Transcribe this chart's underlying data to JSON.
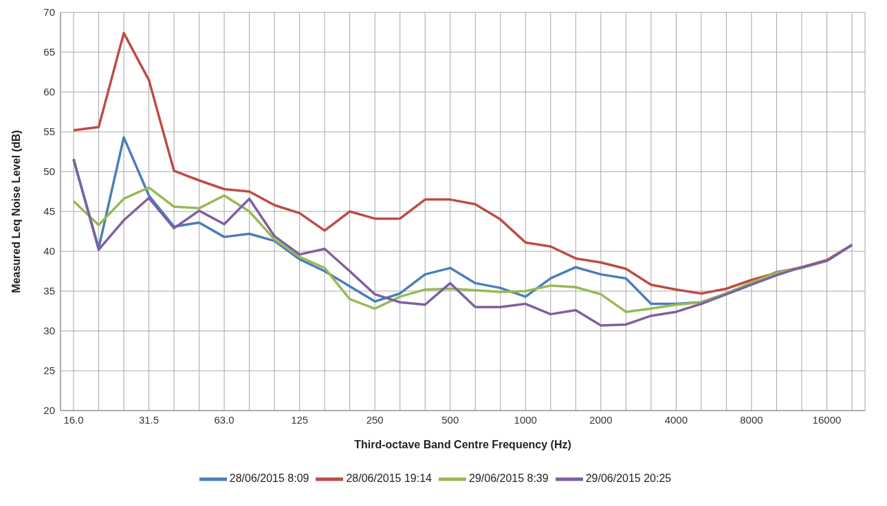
{
  "chart_data": {
    "type": "line",
    "xlabel": "Third-octave Band Centre Frequency (Hz)",
    "ylabel": "Measured Leq Noise Level (dB)",
    "categories": [
      "16.0",
      null,
      null,
      "31.5",
      null,
      null,
      "63.0",
      null,
      null,
      "125",
      null,
      null,
      "250",
      null,
      null,
      "500",
      null,
      null,
      "1000",
      null,
      null,
      "2000",
      null,
      null,
      "4000",
      null,
      null,
      "8000",
      null,
      null,
      "16000",
      null
    ],
    "series": [
      {
        "name": "28/06/2015 8:09",
        "color": "#4a7ebb",
        "values": [
          51.5,
          40.4,
          54.3,
          47.0,
          43.1,
          43.6,
          41.8,
          42.2,
          41.3,
          39.0,
          37.5,
          35.6,
          33.7,
          34.7,
          37.1,
          37.9,
          36.0,
          35.4,
          34.3,
          36.6,
          38.0,
          37.1,
          36.6,
          33.4,
          33.4,
          33.6,
          34.7,
          36.0,
          37.4,
          37.9,
          38.8,
          40.8
        ]
      },
      {
        "name": "28/06/2015 19:14",
        "color": "#be4b48",
        "values": [
          55.2,
          55.6,
          67.4,
          61.5,
          50.1,
          48.9,
          47.8,
          47.5,
          45.8,
          44.8,
          42.6,
          45.0,
          44.1,
          44.1,
          46.5,
          46.5,
          45.9,
          44.0,
          41.1,
          40.6,
          39.1,
          38.6,
          37.8,
          35.8,
          35.2,
          34.7,
          35.3,
          36.4,
          37.3,
          38.0,
          38.9,
          40.8
        ]
      },
      {
        "name": "29/06/2015 8:39",
        "color": "#98b954",
        "values": [
          46.3,
          43.3,
          46.6,
          48.0,
          45.6,
          45.4,
          47.0,
          45.0,
          41.5,
          39.3,
          37.9,
          34.0,
          32.8,
          34.3,
          35.2,
          35.3,
          35.1,
          34.9,
          35.0,
          35.7,
          35.5,
          34.6,
          32.4,
          32.8,
          33.3,
          33.6,
          34.7,
          36.1,
          37.3,
          37.9,
          38.8,
          40.8
        ]
      },
      {
        "name": "29/06/2015 20:25",
        "color": "#7d60a0",
        "values": [
          51.6,
          40.2,
          43.9,
          46.7,
          42.9,
          45.1,
          43.4,
          46.6,
          41.9,
          39.6,
          40.3,
          37.5,
          34.6,
          33.6,
          33.3,
          36.0,
          33.0,
          33.0,
          33.4,
          32.1,
          32.6,
          30.7,
          30.8,
          31.9,
          32.4,
          33.4,
          34.6,
          35.8,
          37.0,
          38.0,
          38.8,
          40.8
        ]
      }
    ],
    "ylim": [
      20,
      70
    ],
    "yticks": [
      20,
      25,
      30,
      35,
      40,
      45,
      50,
      55,
      60,
      65,
      70
    ],
    "grid": true,
    "legend": "bottom",
    "marker": "none",
    "line_style": "solid"
  }
}
